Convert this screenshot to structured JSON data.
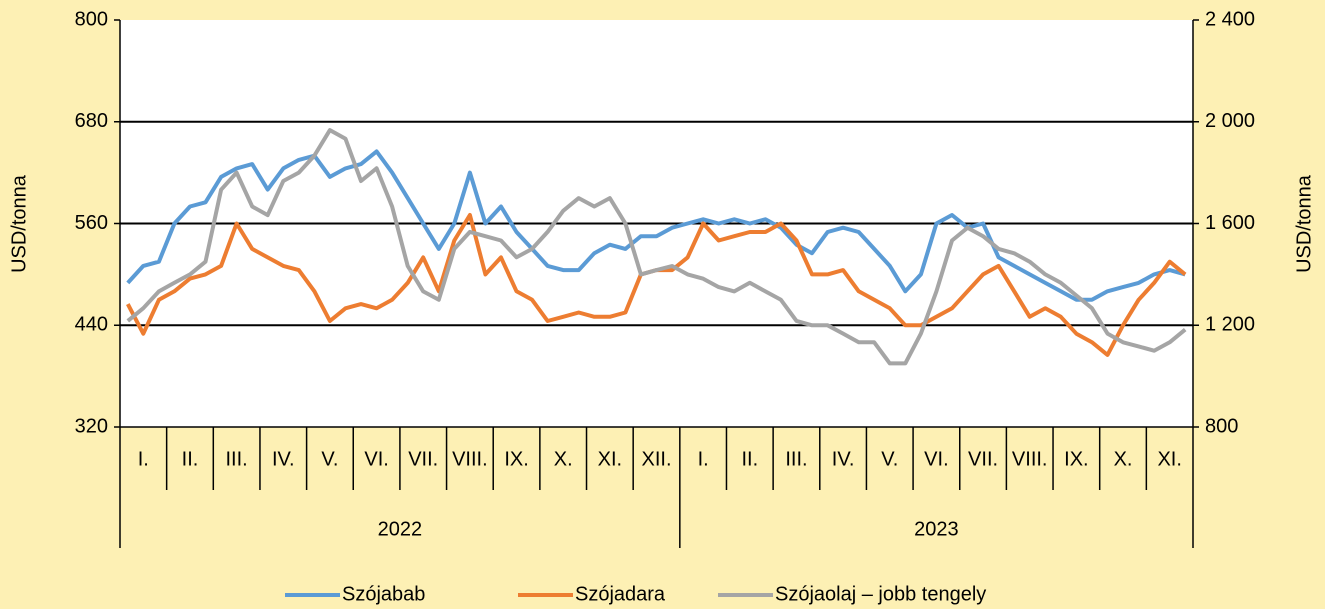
{
  "chart_data": {
    "type": "line",
    "years": [
      {
        "label": "2022",
        "categories": [
          "I.",
          "II.",
          "III.",
          "IV.",
          "V.",
          "VI.",
          "VII.",
          "VIII.",
          "IX.",
          "X.",
          "XI.",
          "XII."
        ]
      },
      {
        "label": "2023",
        "categories": [
          "I.",
          "II.",
          "III.",
          "IV.",
          "V.",
          "VI.",
          "VII.",
          "VIII.",
          "IX.",
          "X.",
          "XI."
        ]
      }
    ],
    "y_label": "USD/tonna",
    "y2_label": "USD/tonna",
    "ylim": [
      320,
      800
    ],
    "yticks": [
      320,
      440,
      560,
      680,
      800
    ],
    "y2lim": [
      800,
      2400
    ],
    "y2ticks": [
      800,
      {
        "value": 1200,
        "label": "1 200"
      },
      {
        "value": 1600,
        "label": "1 600"
      },
      {
        "value": 2000,
        "label": "2 000"
      },
      {
        "value": 2400,
        "label": "2 400"
      }
    ],
    "grid": true,
    "legend": "bottom",
    "series": [
      {
        "name": "Szójabab",
        "color": "#5b9bd5",
        "values": [
          490,
          510,
          515,
          560,
          580,
          585,
          615,
          625,
          630,
          600,
          625,
          635,
          640,
          615,
          625,
          630,
          645,
          620,
          590,
          560,
          530,
          560,
          620,
          560,
          580,
          550,
          530,
          510,
          505,
          505,
          525,
          535,
          530,
          545,
          545,
          555,
          560,
          565,
          560,
          565,
          560,
          565,
          555,
          535,
          525,
          550,
          555,
          550,
          530,
          510,
          480,
          500,
          560,
          570,
          555,
          560,
          520,
          510,
          500,
          490,
          480,
          470,
          470,
          480,
          485,
          490,
          500,
          505,
          500
        ]
      },
      {
        "name": "Szójadara",
        "color": "#ed7d31",
        "values": [
          465,
          430,
          470,
          480,
          495,
          500,
          510,
          560,
          530,
          520,
          510,
          505,
          480,
          445,
          460,
          465,
          460,
          470,
          490,
          520,
          480,
          540,
          570,
          500,
          520,
          480,
          470,
          445,
          450,
          455,
          450,
          450,
          455,
          500,
          505,
          505,
          520,
          560,
          540,
          545,
          550,
          550,
          560,
          540,
          500,
          500,
          505,
          480,
          470,
          460,
          440,
          440,
          450,
          460,
          480,
          500,
          510,
          480,
          450,
          460,
          450,
          430,
          420,
          405,
          440,
          470,
          490,
          515,
          500
        ]
      },
      {
        "name": "Szójaolaj – jobb tengely",
        "color": "#a5a5a5",
        "axis": "y2",
        "values": [
          1217,
          1267,
          1333,
          1367,
          1400,
          1450,
          1733,
          1800,
          1667,
          1633,
          1767,
          1800,
          1867,
          1967,
          1933,
          1767,
          1817,
          1667,
          1433,
          1333,
          1300,
          1500,
          1567,
          1550,
          1533,
          1467,
          1500,
          1567,
          1650,
          1700,
          1667,
          1700,
          1600,
          1400,
          1417,
          1433,
          1400,
          1383,
          1350,
          1333,
          1367,
          1333,
          1300,
          1217,
          1200,
          1200,
          1167,
          1133,
          1133,
          1050,
          1050,
          1167,
          1333,
          1533,
          1583,
          1550,
          1500,
          1483,
          1450,
          1400,
          1367,
          1317,
          1267,
          1167,
          1133,
          1117,
          1100,
          1133,
          1183
        ]
      }
    ]
  }
}
